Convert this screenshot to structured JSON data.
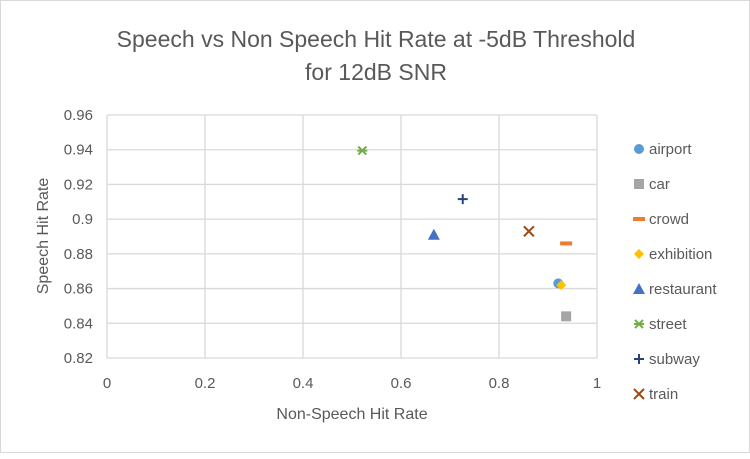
{
  "chart_data": {
    "type": "scatter",
    "title": "Speech vs Non Speech Hit Rate at -5dB Threshold",
    "subtitle": "for 12dB SNR",
    "xlabel": "Non-Speech Hit Rate",
    "ylabel": "Speech Hit Rate",
    "xlim": [
      0,
      1
    ],
    "ylim": [
      0.82,
      0.96
    ],
    "xticks": [
      "0",
      "0.2",
      "0.4",
      "0.6",
      "0.8",
      "1"
    ],
    "yticks": [
      "0.82",
      "0.84",
      "0.86",
      "0.88",
      "0.9",
      "0.92",
      "0.94",
      "0.96"
    ],
    "grid": true,
    "legend_position": "right",
    "series": [
      {
        "name": "airport",
        "marker": "circle",
        "color": "#5B9BD5",
        "x": 0.921,
        "y": 0.863
      },
      {
        "name": "car",
        "marker": "square",
        "color": "#A5A5A5",
        "x": 0.937,
        "y": 0.844
      },
      {
        "name": "crowd",
        "marker": "dash",
        "color": "#ED7D31",
        "x": 0.937,
        "y": 0.886
      },
      {
        "name": "exhibition",
        "marker": "diamond",
        "color": "#FFC000",
        "x": 0.927,
        "y": 0.862
      },
      {
        "name": "restaurant",
        "marker": "triangle",
        "color": "#4472C4",
        "x": 0.667,
        "y": 0.891
      },
      {
        "name": "street",
        "marker": "asterisk",
        "color": "#70AD47",
        "x": 0.521,
        "y": 0.9395
      },
      {
        "name": "subway",
        "marker": "plus",
        "color": "#264478",
        "x": 0.726,
        "y": 0.9115
      },
      {
        "name": "train",
        "marker": "x",
        "color": "#9E480E",
        "x": 0.861,
        "y": 0.893
      }
    ]
  }
}
